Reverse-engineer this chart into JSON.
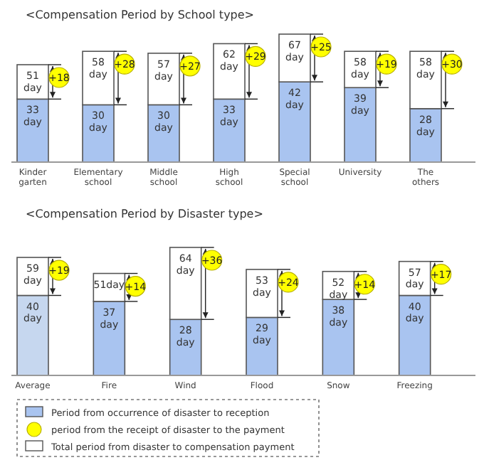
{
  "chart_data": [
    {
      "type": "bar",
      "title": "<Compensation Period by School type>",
      "categories": [
        "Kinder garten",
        "Elementary school",
        "Middle school",
        "High school",
        "Special school",
        "University",
        "The others"
      ],
      "stacked": true,
      "series": [
        {
          "color": "#a9c4f0",
          "values": [
            33,
            30,
            30,
            33,
            42,
            39,
            28
          ],
          "value_labels": [
            "33 day",
            "30 day",
            "30 day",
            "33 day",
            "42 day",
            "39 day",
            "28 day"
          ]
        },
        {
          "color": "#ffffff",
          "values": [
            18,
            28,
            27,
            29,
            25,
            19,
            30
          ],
          "value_labels": [
            "+18",
            "+28",
            "+27",
            "+29",
            "+25",
            "+19",
            "+30"
          ]
        }
      ],
      "totals": [
        "51 day",
        "58 day",
        "57 day",
        "62 day",
        "67 day",
        "58 day",
        "58 day"
      ]
    },
    {
      "type": "bar",
      "title": "<Compensation Period by Disaster type>",
      "categories": [
        "Average",
        "Fire",
        "Wind",
        "Flood",
        "Snow",
        "Freezing"
      ],
      "stacked": true,
      "legend": "bottom",
      "series": [
        {
          "name": "Period from occurrence of disaster to reception",
          "color": "#a9c4f0",
          "colors": [
            "#c6d7ef",
            "#a9c4f0",
            "#a9c4f0",
            "#a9c4f0",
            "#a9c4f0",
            "#a9c4f0"
          ],
          "values": [
            40,
            37,
            28,
            29,
            38,
            40
          ],
          "value_labels": [
            "40 day",
            "37 day",
            "28 day",
            "29 day",
            "38 day",
            "40 day"
          ]
        },
        {
          "color": "#ffffff",
          "values": [
            19,
            14,
            36,
            24,
            14,
            17
          ],
          "value_labels": [
            "+19",
            "+14",
            "+36",
            "+24",
            "+14",
            "+17"
          ]
        }
      ],
      "totals": [
        "59 day",
        "51day",
        "64 day",
        "53 day",
        "52 day",
        "57 day"
      ],
      "annotations": [
        "period from the receipt of disaster to the payment",
        "Total period from disaster to compensation payment"
      ]
    }
  ]
}
